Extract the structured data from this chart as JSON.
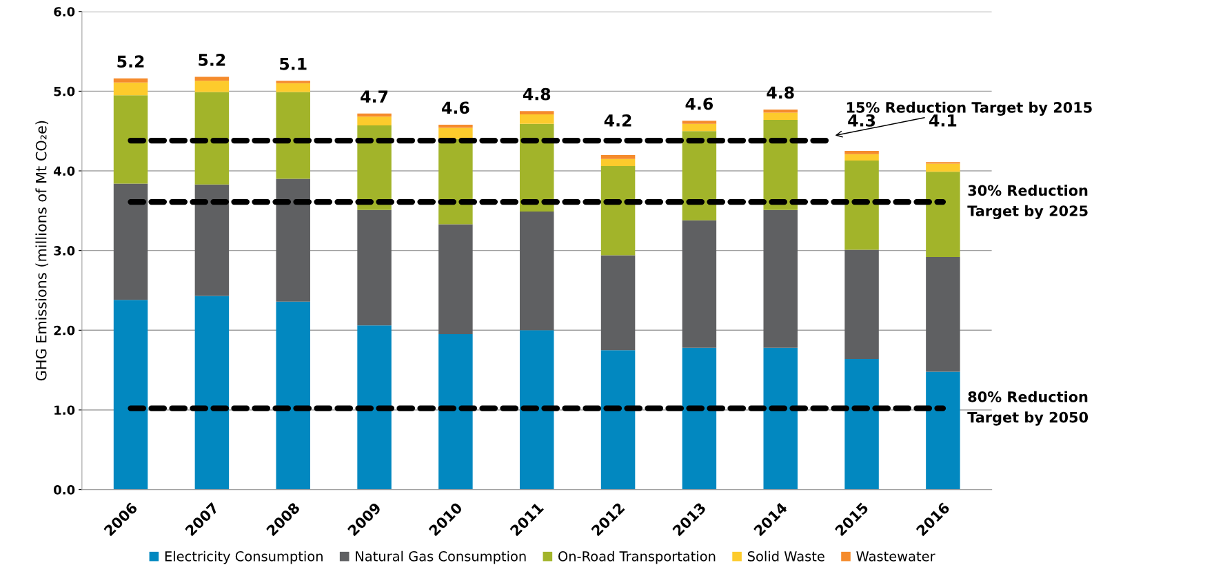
{
  "chart_data": {
    "type": "bar",
    "stacked": true,
    "ylabel": "GHG Emissions (millions of Mt CO₂e)",
    "categories": [
      "2006",
      "2007",
      "2008",
      "2009",
      "2010",
      "2011",
      "2012",
      "2013",
      "2014",
      "2015",
      "2016"
    ],
    "series": [
      {
        "name": "Electricity Consumption",
        "color": "#0288c0",
        "values": [
          2.38,
          2.43,
          2.36,
          2.06,
          1.95,
          2.0,
          1.75,
          1.78,
          1.78,
          1.64,
          1.48
        ]
      },
      {
        "name": "Natural Gas Consumption",
        "color": "#5f6062",
        "values": [
          1.46,
          1.4,
          1.54,
          1.45,
          1.38,
          1.49,
          1.19,
          1.6,
          1.73,
          1.37,
          1.44
        ]
      },
      {
        "name": "On-Road Transportation",
        "color": "#a2b42a",
        "values": [
          1.11,
          1.16,
          1.09,
          1.06,
          1.07,
          1.1,
          1.12,
          1.12,
          1.13,
          1.12,
          1.07
        ]
      },
      {
        "name": "Solid Waste",
        "color": "#fdcb2c",
        "values": [
          0.16,
          0.14,
          0.11,
          0.11,
          0.14,
          0.12,
          0.09,
          0.09,
          0.09,
          0.08,
          0.1
        ]
      },
      {
        "name": "Wastewater",
        "color": "#f58b2c",
        "values": [
          0.05,
          0.05,
          0.03,
          0.04,
          0.04,
          0.04,
          0.05,
          0.04,
          0.04,
          0.04,
          0.02
        ]
      }
    ],
    "totals": [
      "5.2",
      "5.2",
      "5.1",
      "4.7",
      "4.6",
      "4.8",
      "4.2",
      "4.6",
      "4.8",
      "4.3",
      "4.1"
    ],
    "ylim": [
      0,
      6
    ],
    "yticks": [
      {
        "value": 0,
        "label": "0.0"
      },
      {
        "value": 1,
        "label": "1.0"
      },
      {
        "value": 2,
        "label": "2.0"
      },
      {
        "value": 3,
        "label": "3.0"
      },
      {
        "value": 4,
        "label": "4.0"
      },
      {
        "value": 5,
        "label": "5.0"
      },
      {
        "value": 6,
        "label": "6.0"
      }
    ],
    "ref_lines": [
      {
        "axis": "y",
        "value": 4.38,
        "label": "15% Reduction Target by 2015",
        "color": "#000000",
        "line_style": "dashed"
      },
      {
        "axis": "y",
        "value": 3.61,
        "label": "30% Reduction\nTarget by 2025",
        "color": "#000000",
        "line_style": "dashed"
      },
      {
        "axis": "y",
        "value": 1.02,
        "label": "80% Reduction\nTarget by 2050",
        "color": "#000000",
        "line_style": "dashed"
      }
    ],
    "grid": "y",
    "legend": "bottom"
  }
}
